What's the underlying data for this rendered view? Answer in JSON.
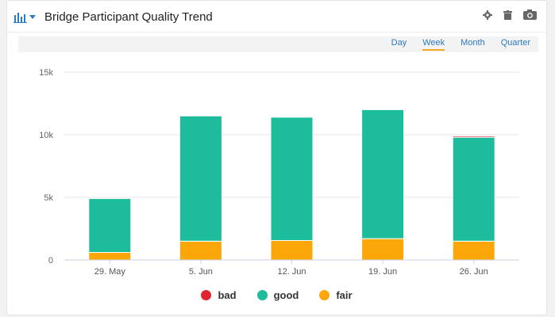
{
  "header": {
    "title": "Bridge Participant Quality Trend",
    "icons": [
      "bar-chart-icon",
      "chevron-down-icon",
      "gear-icon",
      "trash-icon",
      "camera-icon"
    ]
  },
  "periods": [
    "Day",
    "Week",
    "Month",
    "Quarter"
  ],
  "active_period": "Week",
  "colors": {
    "bad": "#e0242f",
    "good": "#1dbc9c",
    "fair": "#fba609",
    "accent": "#2b7bc0"
  },
  "chart_data": {
    "type": "bar",
    "stacked": true,
    "categories": [
      "29. May",
      "5. Jun",
      "12. Jun",
      "19. Jun",
      "26. Jun"
    ],
    "series": [
      {
        "name": "bad",
        "values": [
          0,
          0,
          0,
          0,
          100
        ]
      },
      {
        "name": "good",
        "values": [
          4300,
          10000,
          9850,
          10300,
          8300
        ]
      },
      {
        "name": "fair",
        "values": [
          600,
          1500,
          1550,
          1700,
          1500
        ]
      }
    ],
    "ylim": [
      0,
      15000
    ],
    "yticks": [
      "0",
      "5k",
      "10k",
      "15k"
    ],
    "grid": true,
    "legend": "bottom-center"
  }
}
